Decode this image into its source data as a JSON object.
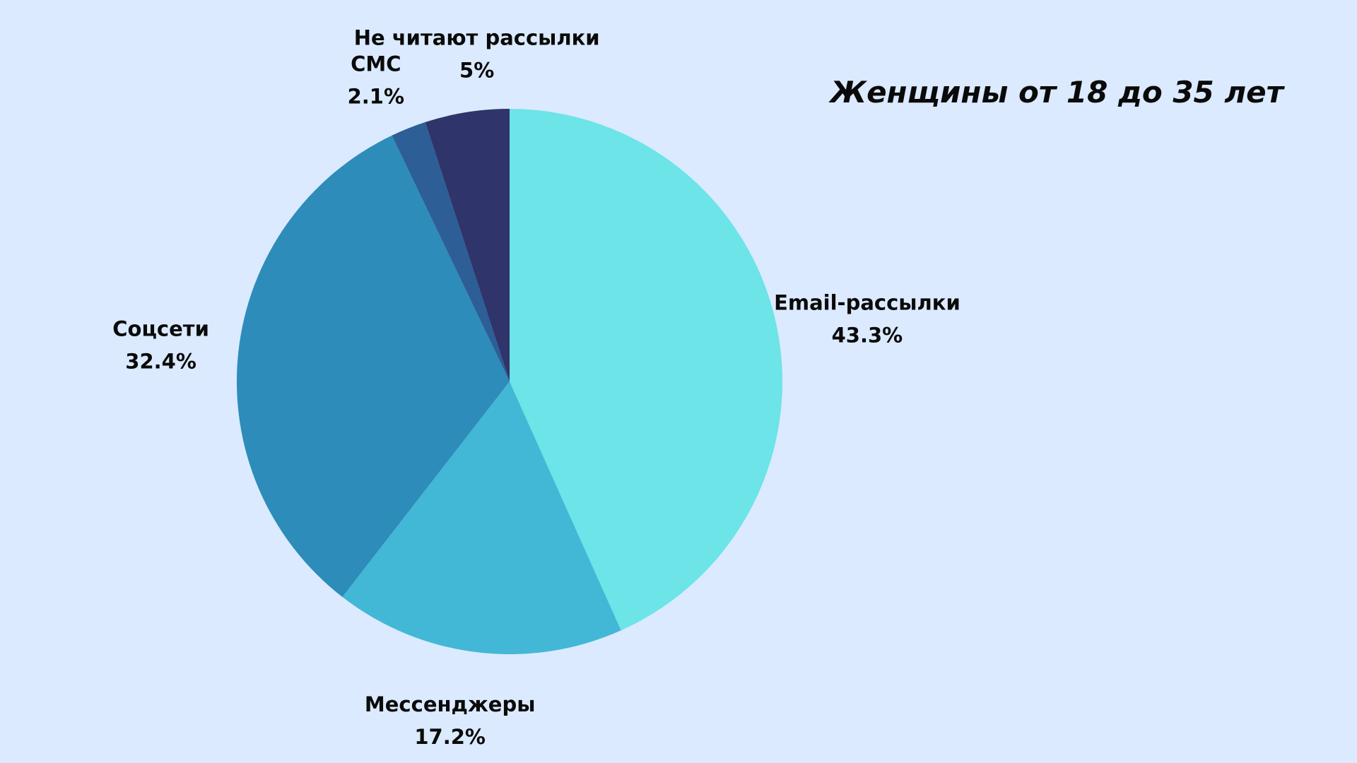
{
  "chart_data": {
    "type": "pie",
    "title": "Женщины от 18 до 35 лет",
    "start_angle_deg": 0,
    "direction": "clockwise",
    "slices": [
      {
        "label": "Email-рассылки",
        "value": 43.3,
        "value_label": "43.3%",
        "color": "#6ce4e8"
      },
      {
        "label": "Мессенджеры",
        "value": 17.2,
        "value_label": "17.2%",
        "color": "#42b8d6"
      },
      {
        "label": "Соцсети",
        "value": 32.4,
        "value_label": "32.4%",
        "color": "#2d8cba"
      },
      {
        "label": "СМС",
        "value": 2.1,
        "value_label": "2.1%",
        "color": "#2d5e96"
      },
      {
        "label": "Не читают рассылки",
        "value": 5,
        "value_label": "5%",
        "color": "#2f346a"
      }
    ]
  }
}
